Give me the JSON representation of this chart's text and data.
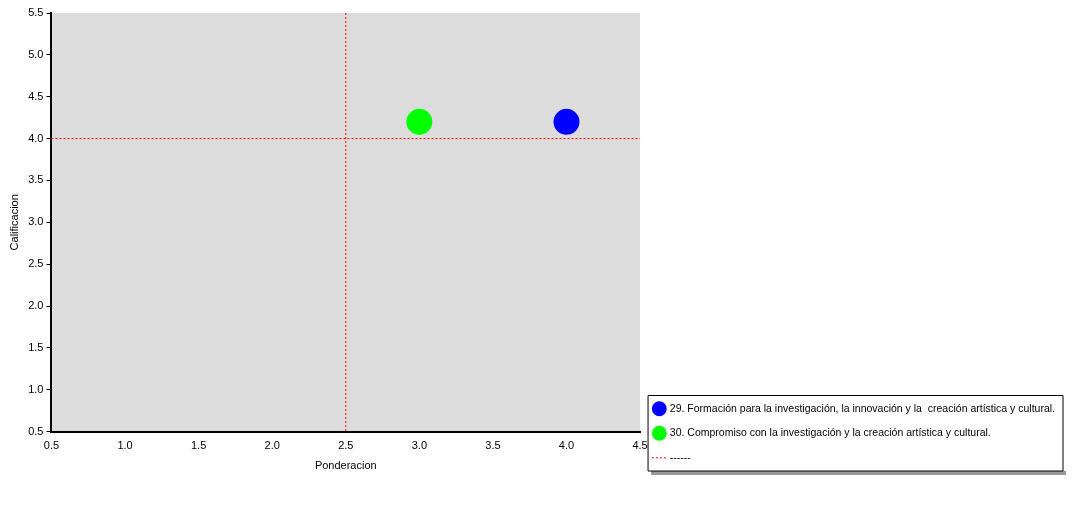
{
  "chart_data": {
    "type": "scatter",
    "xlabel": "Ponderacion",
    "ylabel": "Calificacion",
    "series": [
      {
        "name": "29. Formación para la investigación, la innovación y la  creación artística y cultural.",
        "color": "#0000ff",
        "x": [
          4.0
        ],
        "values": [
          4.2
        ]
      },
      {
        "name": "30. Compromiso con la investigación y la creación artística y cultural.",
        "color": "#00ff00",
        "x": [
          3.0
        ],
        "values": [
          4.2
        ]
      }
    ],
    "xlim": [
      0.5,
      4.5
    ],
    "xticks": [
      {
        "value": 0.5,
        "label": "0.5"
      },
      {
        "value": 1,
        "label": "1.0"
      },
      {
        "value": 1.5,
        "label": "1.5"
      },
      {
        "value": 2,
        "label": "2.0"
      },
      {
        "value": 2.5,
        "label": "2.5"
      },
      {
        "value": 3,
        "label": "3.0"
      },
      {
        "value": 3.5,
        "label": "3.5"
      },
      {
        "value": 4,
        "label": "4.0"
      },
      {
        "value": 4.5,
        "label": "4.5"
      }
    ],
    "ylim": [
      0.5,
      5.5
    ],
    "yticks": [
      {
        "value": 0.5,
        "label": "0.5"
      },
      {
        "value": 1,
        "label": "1.0"
      },
      {
        "value": 1.5,
        "label": "1.5"
      },
      {
        "value": 2,
        "label": "2.0"
      },
      {
        "value": 2.5,
        "label": "2.5"
      },
      {
        "value": 3,
        "label": "3.0"
      },
      {
        "value": 3.5,
        "label": "3.5"
      },
      {
        "value": 4,
        "label": "4.0"
      },
      {
        "value": 4.5,
        "label": "4.5"
      },
      {
        "value": 5,
        "label": "5.0"
      },
      {
        "value": 5.5,
        "label": "5.5"
      }
    ],
    "ref_lines": [
      {
        "axis": "x",
        "value": 2.5,
        "label": "------",
        "color": "#ff0000",
        "line_style": "dotted"
      },
      {
        "axis": "y",
        "value": 4.0,
        "color": "#ff0000",
        "line_style": "dotted"
      }
    ],
    "marker": "circle",
    "grid": false,
    "legend": "bottom right"
  }
}
